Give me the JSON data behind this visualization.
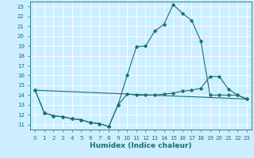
{
  "xlabel": "Humidex (Indice chaleur)",
  "bg_color": "#cceeff",
  "line_color": "#1a7070",
  "grid_color": "#ffffff",
  "xlim": [
    -0.5,
    23.5
  ],
  "ylim": [
    10.5,
    23.5
  ],
  "xticks": [
    0,
    1,
    2,
    3,
    4,
    5,
    6,
    7,
    8,
    9,
    10,
    11,
    12,
    13,
    14,
    15,
    16,
    17,
    18,
    19,
    20,
    21,
    22,
    23
  ],
  "yticks": [
    11,
    12,
    13,
    14,
    15,
    16,
    17,
    18,
    19,
    20,
    21,
    22,
    23
  ],
  "line1_x": [
    0,
    1,
    2,
    3,
    4,
    5,
    6,
    7,
    8,
    9,
    10,
    11,
    12,
    13,
    14,
    15,
    16,
    17,
    18,
    19,
    20,
    21,
    22,
    23
  ],
  "line1_y": [
    14.5,
    12.2,
    11.9,
    11.8,
    11.6,
    11.5,
    11.2,
    11.1,
    10.8,
    13.0,
    14.1,
    14.0,
    14.0,
    14.0,
    14.1,
    14.2,
    14.4,
    14.5,
    14.7,
    15.9,
    15.9,
    14.6,
    14.0,
    13.6
  ],
  "line2_x": [
    0,
    1,
    2,
    3,
    4,
    5,
    6,
    7,
    8,
    9,
    10,
    11,
    12,
    13,
    14,
    15,
    16,
    17,
    18,
    19,
    20,
    21,
    22,
    23
  ],
  "line2_y": [
    14.5,
    12.2,
    11.9,
    11.8,
    11.6,
    11.5,
    11.2,
    11.1,
    10.8,
    13.0,
    16.0,
    18.9,
    19.0,
    20.5,
    21.2,
    23.2,
    22.3,
    21.6,
    19.5,
    14.0,
    14.0,
    14.0,
    14.0,
    13.6
  ],
  "line3_x": [
    0,
    23
  ],
  "line3_y": [
    14.5,
    13.6
  ],
  "lw": 0.8,
  "ms": 1.8,
  "xlabel_fontsize": 6.5,
  "tick_fontsize": 5.0
}
